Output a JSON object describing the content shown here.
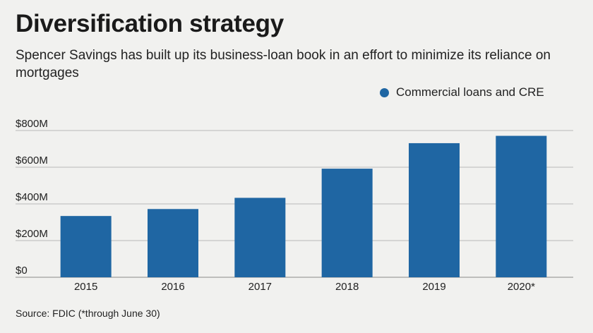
{
  "title": "Diversification strategy",
  "subtitle": "Spencer Savings has built up its business-loan book in an effort to minimize its reliance on mortgages",
  "source": "Source: FDIC (*through June 30)",
  "colors": {
    "bar": "#1f66a3",
    "grid": "#b9b9b9",
    "background": "#f1f1ef"
  },
  "chart_data": {
    "type": "bar",
    "categories": [
      "2015",
      "2016",
      "2017",
      "2018",
      "2019",
      "2020*"
    ],
    "series": [
      {
        "name": "Commercial loans and CRE",
        "values": [
          334,
          372,
          433,
          592,
          731,
          771
        ]
      }
    ],
    "ylim": [
      0,
      800
    ],
    "yticks": [
      0,
      200,
      400,
      600,
      800
    ],
    "ytick_labels": [
      "$0",
      "$200M",
      "$400M",
      "$600M",
      "$800M"
    ],
    "grid": true,
    "legend": "top-right",
    "xlabel": "",
    "ylabel": ""
  }
}
